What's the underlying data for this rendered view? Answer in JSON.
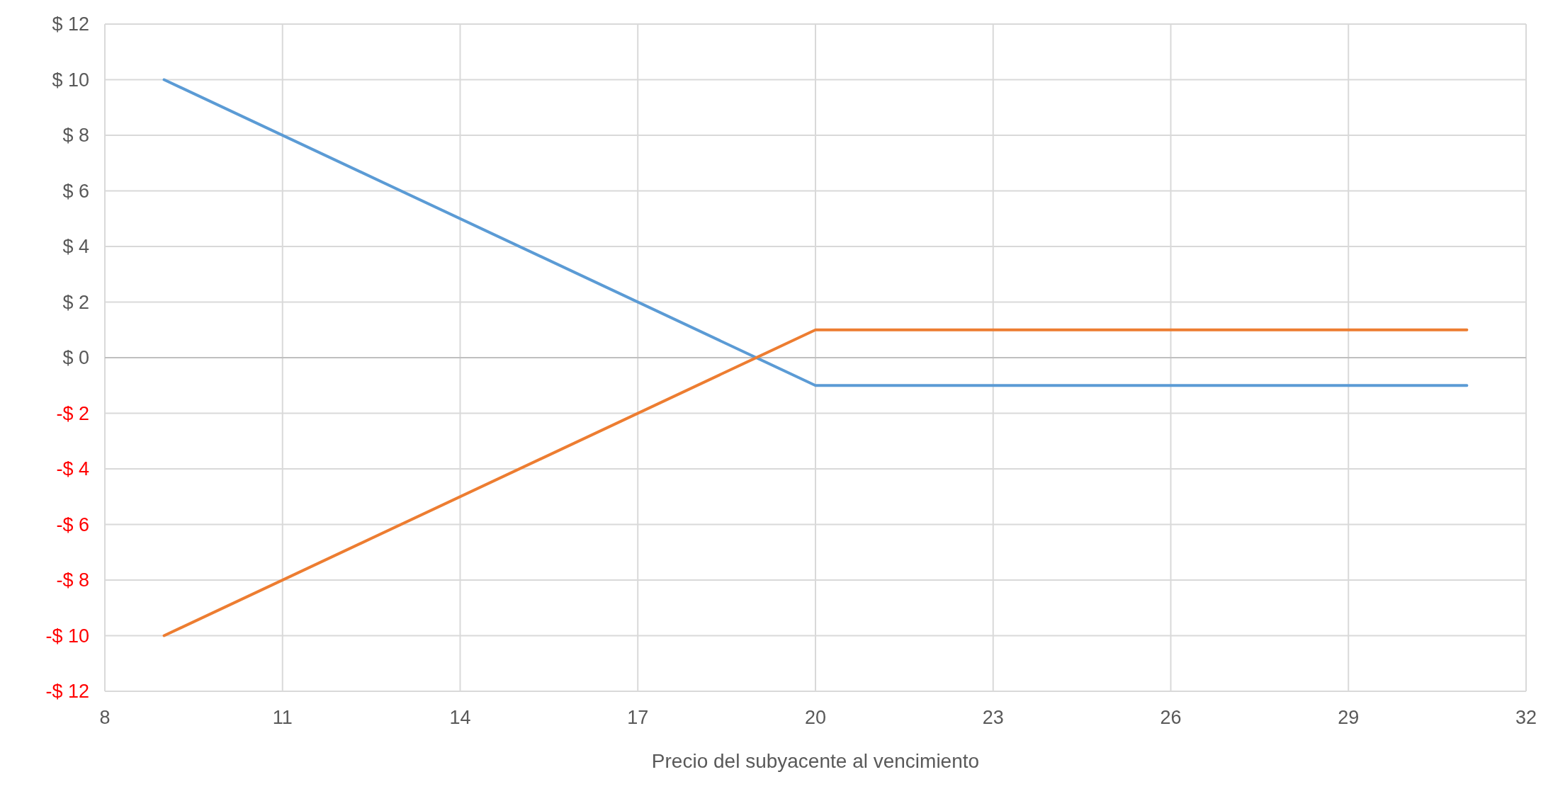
{
  "chart_data": {
    "type": "line",
    "xlabel": "Precio del subyacente al vencimiento",
    "x": [
      9,
      20,
      31
    ],
    "series": [
      {
        "color": "#5b9bd5",
        "values": [
          10,
          -1,
          -1
        ]
      },
      {
        "color": "#ed7d31",
        "values": [
          -10,
          1,
          1
        ]
      }
    ],
    "xlim": [
      8,
      32
    ],
    "xticks": [
      8,
      11,
      14,
      17,
      20,
      23,
      26,
      29,
      32
    ],
    "ylim": [
      -12,
      12
    ],
    "yticks": [
      {
        "value": -12,
        "label": "-$ 12"
      },
      {
        "value": -10,
        "label": "-$ 10"
      },
      {
        "value": -8,
        "label": "-$ 8"
      },
      {
        "value": -6,
        "label": "-$ 6"
      },
      {
        "value": -4,
        "label": "-$ 4"
      },
      {
        "value": -2,
        "label": "-$ 2"
      },
      {
        "value": 0,
        "label": "$ 0"
      },
      {
        "value": 2,
        "label": "$ 2"
      },
      {
        "value": 4,
        "label": "$ 4"
      },
      {
        "value": 6,
        "label": "$ 6"
      },
      {
        "value": 8,
        "label": "$ 8"
      },
      {
        "value": 10,
        "label": "$ 10"
      },
      {
        "value": 12,
        "label": "$ 12"
      }
    ],
    "grid": true,
    "marker": "none",
    "line_style": "solid"
  }
}
